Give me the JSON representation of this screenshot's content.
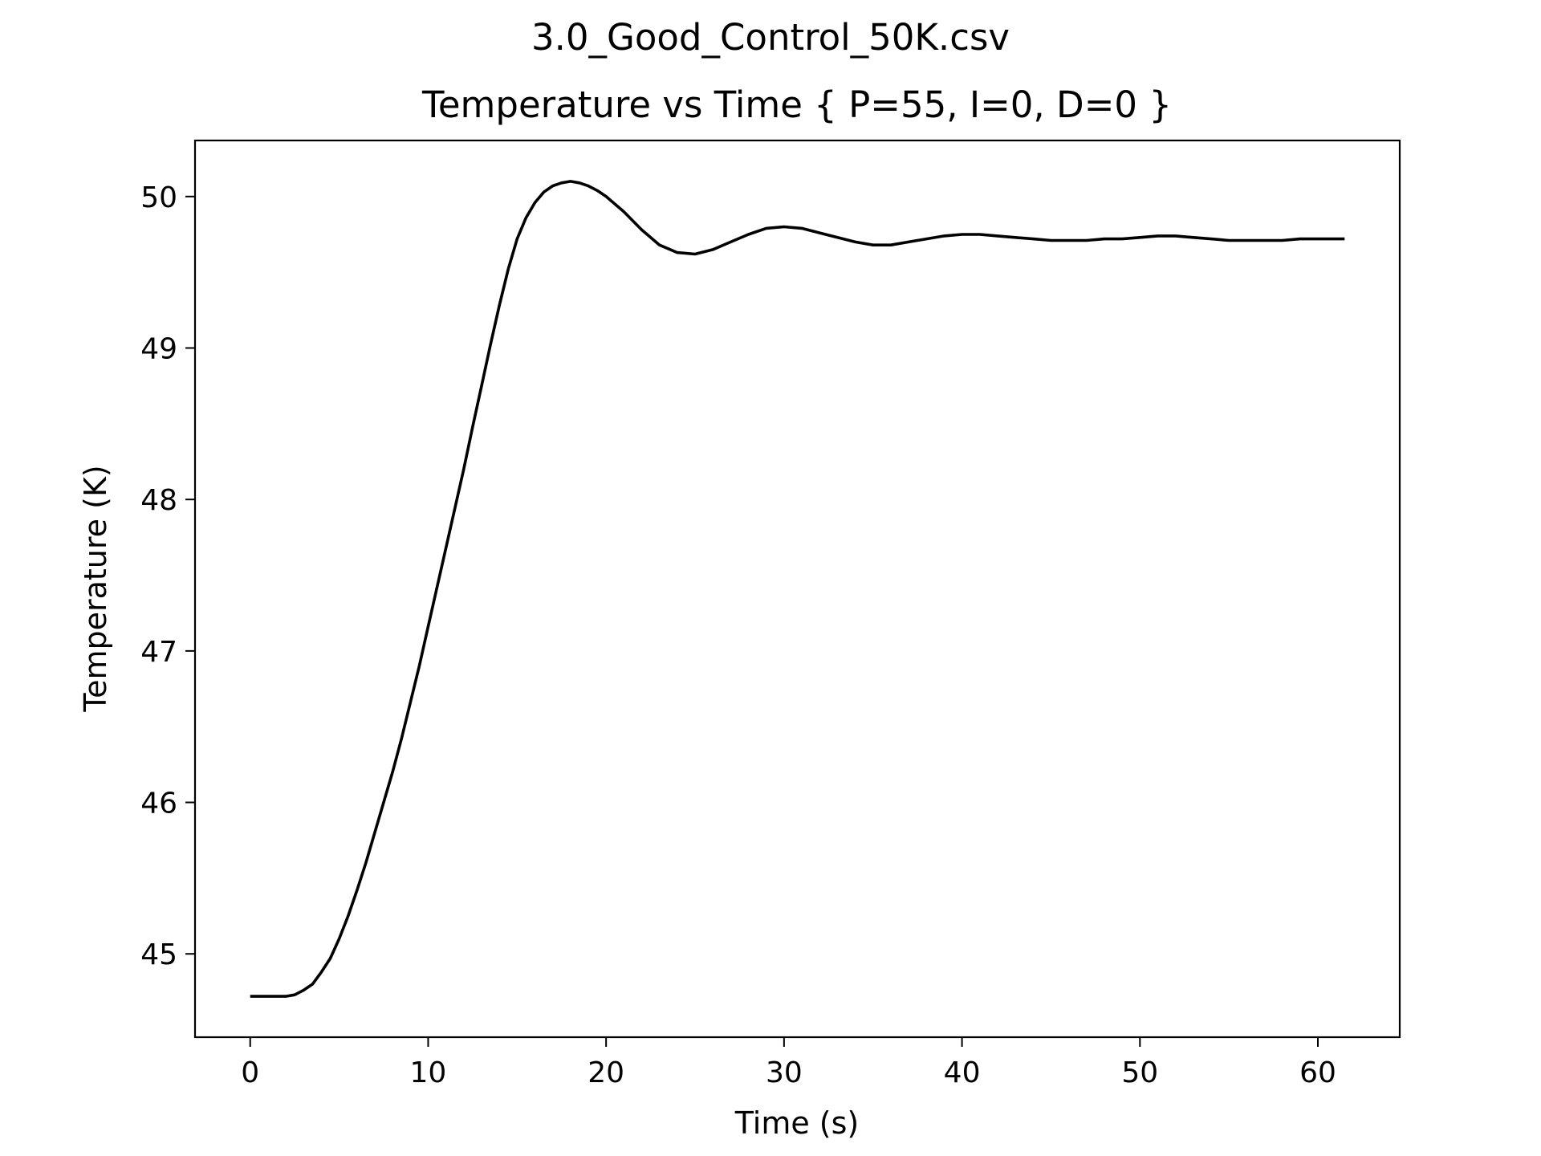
{
  "figure": {
    "suptitle": "3.0_Good_Control_50K.csv"
  },
  "chart_data": {
    "type": "line",
    "title": "Temperature vs Time { P=55, I=0, D=0 }",
    "xlabel": "Time (s)",
    "ylabel": "Temperature (K)",
    "xlim": [
      -3.1,
      64.6
    ],
    "ylim": [
      44.45,
      50.37
    ],
    "xticks": [
      0,
      10,
      20,
      30,
      40,
      50,
      60
    ],
    "yticks": [
      45,
      46,
      47,
      48,
      49,
      50
    ],
    "grid": false,
    "line_color": "#000000",
    "series": [
      {
        "x": [
          0,
          1,
          2,
          2.5,
          3,
          3.5,
          4,
          4.5,
          5,
          5.5,
          6,
          6.5,
          7,
          7.5,
          8,
          8.5,
          9,
          9.5,
          10,
          10.5,
          11,
          11.5,
          12,
          12.5,
          13,
          13.5,
          14,
          14.5,
          15,
          15.5,
          16,
          16.5,
          17,
          17.5,
          18,
          18.5,
          19,
          19.5,
          20,
          21,
          22,
          23,
          24,
          25,
          26,
          27,
          28,
          29,
          30,
          31,
          32,
          33,
          34,
          35,
          36,
          37,
          38,
          39,
          40,
          41,
          42,
          43,
          44,
          45,
          46,
          47,
          48,
          49,
          50,
          51,
          52,
          53,
          54,
          55,
          56,
          57,
          58,
          59,
          60,
          61,
          61.5
        ],
        "y": [
          44.72,
          44.72,
          44.72,
          44.73,
          44.76,
          44.8,
          44.88,
          44.97,
          45.1,
          45.25,
          45.42,
          45.6,
          45.8,
          46.0,
          46.2,
          46.42,
          46.66,
          46.9,
          47.16,
          47.42,
          47.68,
          47.94,
          48.2,
          48.48,
          48.75,
          49.02,
          49.28,
          49.52,
          49.72,
          49.86,
          49.96,
          50.03,
          50.07,
          50.09,
          50.1,
          50.09,
          50.07,
          50.04,
          50.0,
          49.9,
          49.78,
          49.68,
          49.63,
          49.62,
          49.65,
          49.7,
          49.75,
          49.79,
          49.8,
          49.79,
          49.76,
          49.73,
          49.7,
          49.68,
          49.68,
          49.7,
          49.72,
          49.74,
          49.75,
          49.75,
          49.74,
          49.73,
          49.72,
          49.71,
          49.71,
          49.71,
          49.72,
          49.72,
          49.73,
          49.74,
          49.74,
          49.73,
          49.72,
          49.71,
          49.71,
          49.71,
          49.71,
          49.72,
          49.72,
          49.72,
          49.72
        ]
      }
    ]
  }
}
